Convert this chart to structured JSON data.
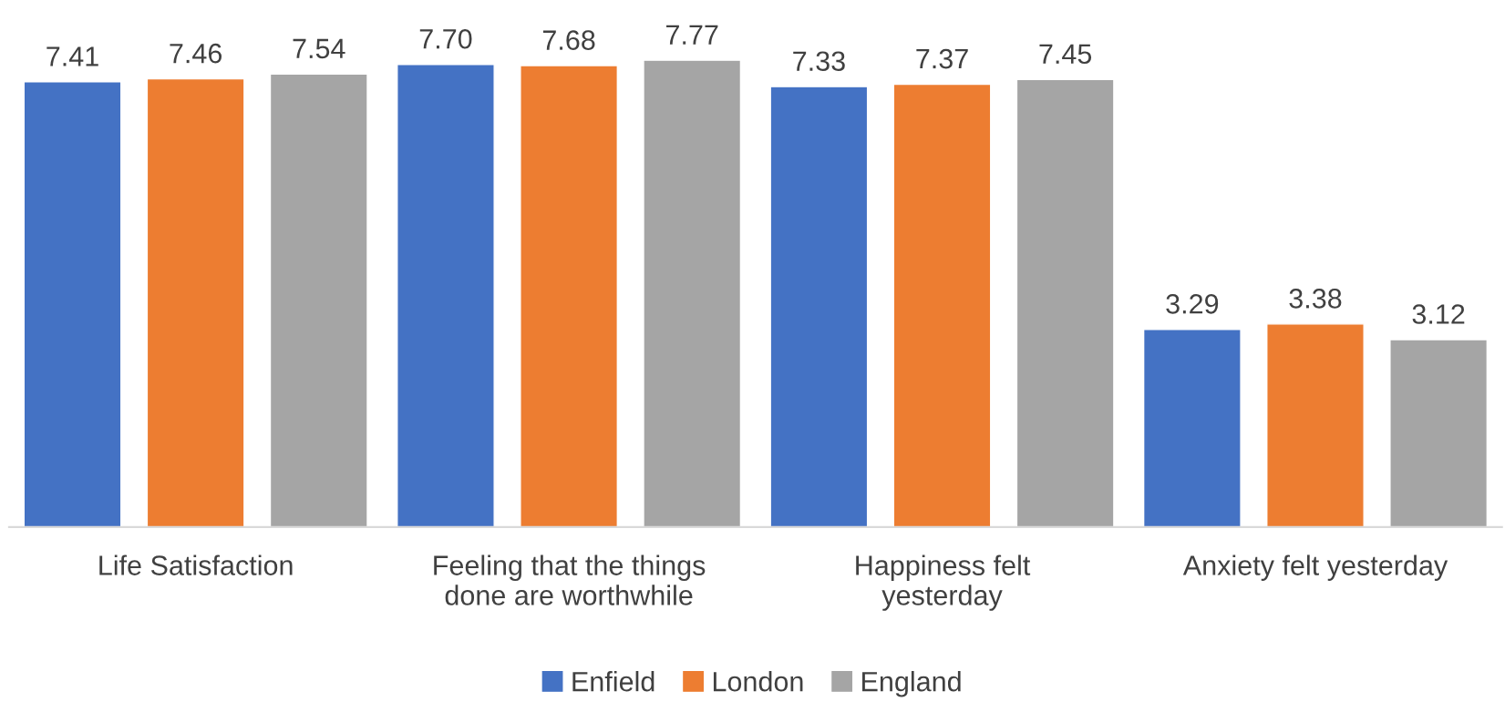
{
  "chart_data": {
    "type": "bar",
    "categories": [
      "Life Satisfaction",
      "Feeling that the things done are worthwhile",
      "Happiness felt yesterday",
      "Anxiety felt yesterday"
    ],
    "series": [
      {
        "name": "Enfield",
        "color": "#4472c4",
        "values": [
          7.41,
          7.7,
          7.33,
          3.29
        ],
        "value_labels": [
          "7.41",
          "7.70",
          "7.33",
          "3.29"
        ]
      },
      {
        "name": "London",
        "color": "#ed7d31",
        "values": [
          7.46,
          7.68,
          7.37,
          3.38
        ],
        "value_labels": [
          "7.46",
          "7.68",
          "7.37",
          "3.38"
        ]
      },
      {
        "name": "England",
        "color": "#a5a5a5",
        "values": [
          7.54,
          7.77,
          7.45,
          3.12
        ],
        "value_labels": [
          "7.54",
          "7.77",
          "7.45",
          "3.12"
        ]
      }
    ],
    "legend": "bottom",
    "grid": false
  }
}
